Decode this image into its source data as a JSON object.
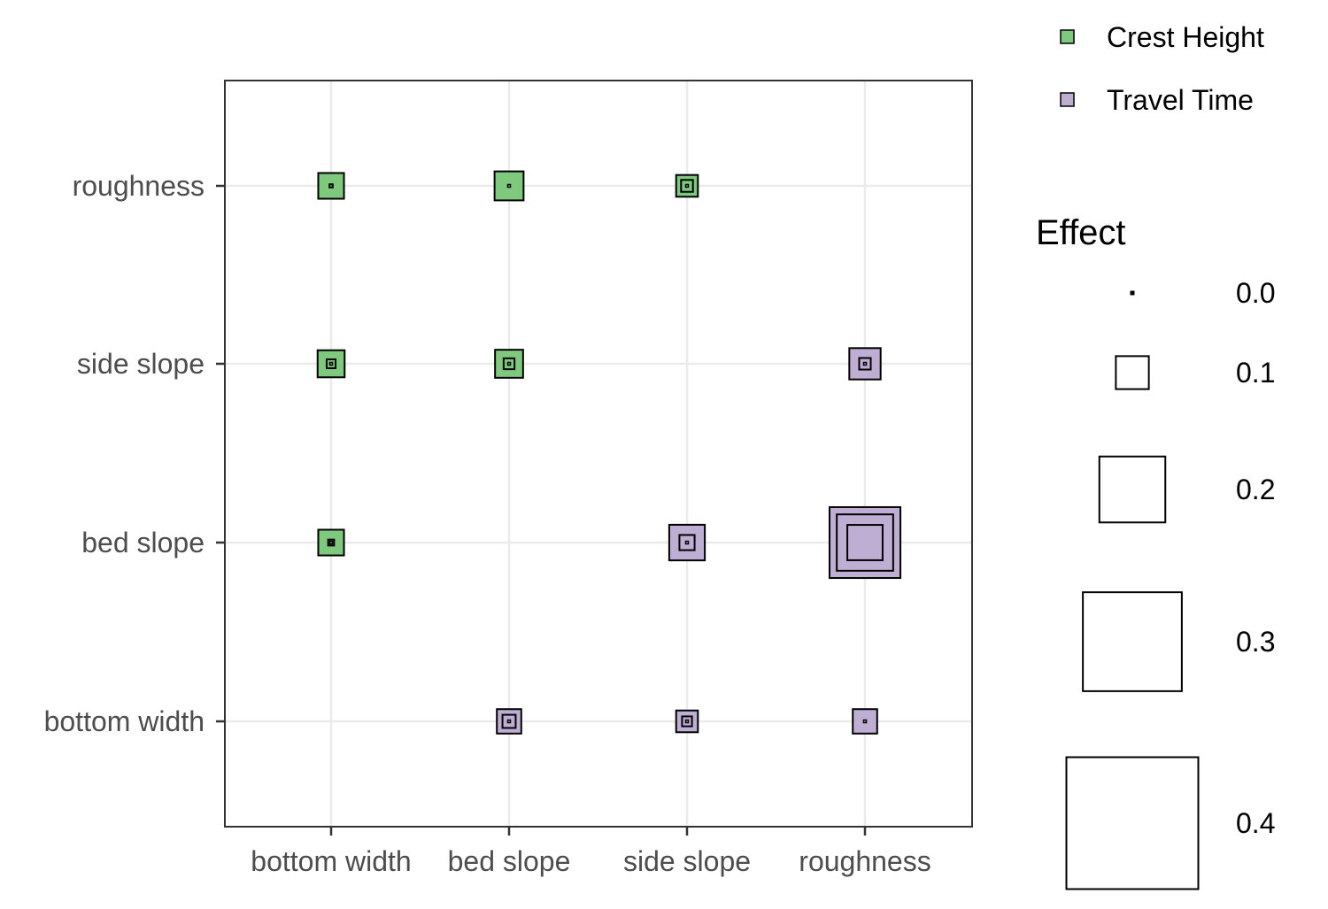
{
  "chart_data": {
    "type": "heatmap",
    "x_categories": [
      "bottom width",
      "bed slope",
      "side slope",
      "roughness"
    ],
    "y_categories": [
      "bottom width",
      "bed slope",
      "side slope",
      "roughness"
    ],
    "series": [
      {
        "name": "Crest Height",
        "color": "#7fc97f",
        "cells": [
          {
            "x": "bottom width",
            "y": "roughness",
            "effect": 0.078,
            "inner": [
              0.011,
              0.003
            ]
          },
          {
            "x": "bed slope",
            "y": "roughness",
            "effect": 0.088,
            "inner": [
              0.001
            ]
          },
          {
            "x": "side slope",
            "y": "roughness",
            "effect": 0.066,
            "inner": [
              0.036,
              0.003
            ]
          },
          {
            "x": "bottom width",
            "y": "side slope",
            "effect": 0.082,
            "inner": [
              0.027,
              0.003
            ]
          },
          {
            "x": "bed slope",
            "y": "side slope",
            "effect": 0.085,
            "inner": [
              0.033,
              0.003
            ]
          },
          {
            "x": "bottom width",
            "y": "bed slope",
            "effect": 0.078,
            "inner": [
              0.018,
              0.004
            ]
          }
        ]
      },
      {
        "name": "Travel Time",
        "color": "#beaed4",
        "cells": [
          {
            "x": "roughness",
            "y": "side slope",
            "effect": 0.095,
            "inner": [
              0.035,
              0.003
            ]
          },
          {
            "x": "side slope",
            "y": "bed slope",
            "effect": 0.108,
            "inner": [
              0.046,
              0.003
            ]
          },
          {
            "x": "roughness",
            "y": "bed slope",
            "effect": 0.215,
            "inner": [
              0.171,
              0.107
            ]
          },
          {
            "x": "bed slope",
            "y": "bottom width",
            "effect": 0.074,
            "inner": [
              0.04,
              0.003
            ]
          },
          {
            "x": "side slope",
            "y": "bottom width",
            "effect": 0.066,
            "inner": [
              0.03,
              0.003
            ]
          },
          {
            "x": "roughness",
            "y": "bottom width",
            "effect": 0.074,
            "inner": [
              0.003
            ]
          }
        ]
      }
    ],
    "legend_color": {
      "items": [
        {
          "label": "Crest Height",
          "color": "#7fc97f"
        },
        {
          "label": "Travel Time",
          "color": "#beaed4"
        }
      ]
    },
    "legend_size": {
      "title": "Effect",
      "items": [
        {
          "value": 0.0,
          "label": "0.0"
        },
        {
          "value": 0.1,
          "label": "0.1"
        },
        {
          "value": 0.2,
          "label": "0.2"
        },
        {
          "value": 0.3,
          "label": "0.3"
        },
        {
          "value": 0.4,
          "label": "0.4"
        }
      ]
    },
    "grid": true,
    "legend_position": "right"
  }
}
